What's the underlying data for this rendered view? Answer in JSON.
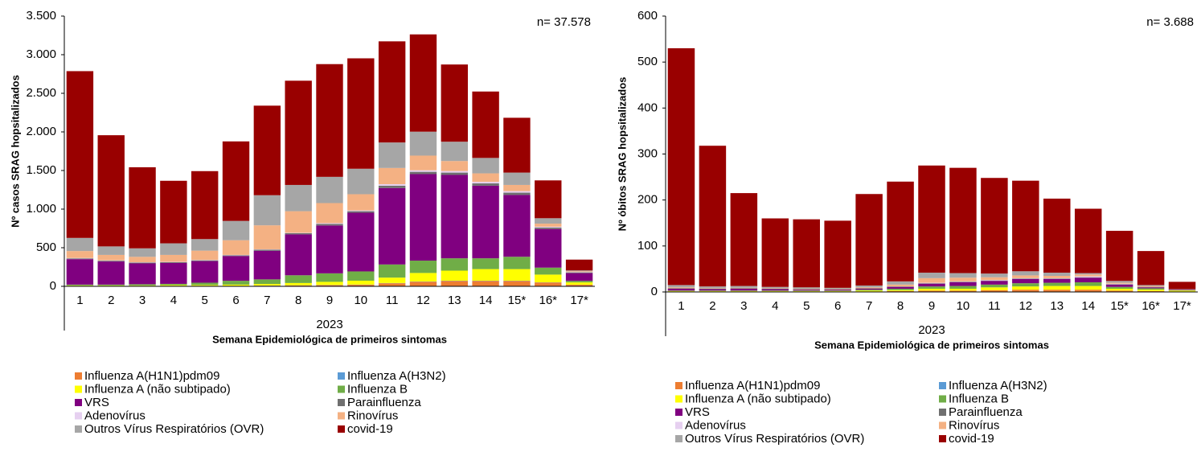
{
  "chart_data": [
    {
      "type": "bar",
      "stacked": true,
      "annotation": "n= 37.578",
      "ylabel": "Nº casos SRAG hopsitalizados",
      "xlabel": "Semana Epidemiológica de primeiros sintomas",
      "x_group": "2023",
      "categories": [
        "1",
        "2",
        "3",
        "4",
        "5",
        "6",
        "7",
        "8",
        "9",
        "10",
        "11",
        "12",
        "13",
        "14",
        "15*",
        "16*",
        "17*"
      ],
      "ylim": [
        0,
        3500
      ],
      "yticks": [
        0,
        500,
        {
          "value": 1000,
          "label": "1.000"
        },
        {
          "value": 1500,
          "label": "1.500"
        },
        {
          "value": 2000,
          "label": "2.000"
        },
        {
          "value": 2500,
          "label": "2.500"
        },
        {
          "value": 3000,
          "label": "3.000"
        },
        {
          "value": 3500,
          "label": "3.500"
        }
      ],
      "series": [
        {
          "name": "Influenza A(H1N1)pdm09",
          "color": "#ed7d31",
          "values": [
            5,
            5,
            5,
            5,
            5,
            5,
            8,
            10,
            15,
            20,
            40,
            60,
            70,
            70,
            70,
            50,
            20
          ]
        },
        {
          "name": "Influenza A(H3N2)",
          "color": "#5b9bd5",
          "values": [
            2,
            2,
            2,
            2,
            2,
            2,
            2,
            3,
            3,
            3,
            3,
            3,
            3,
            3,
            3,
            2,
            1
          ]
        },
        {
          "name": "Influenza A (não subtipado)",
          "color": "#ffff00",
          "values": [
            5,
            5,
            5,
            10,
            10,
            15,
            20,
            30,
            40,
            50,
            70,
            110,
            130,
            150,
            150,
            100,
            30
          ]
        },
        {
          "name": "Influenza B",
          "color": "#70ad47",
          "values": [
            10,
            10,
            15,
            15,
            30,
            50,
            60,
            100,
            110,
            120,
            170,
            160,
            160,
            140,
            160,
            90,
            20
          ]
        },
        {
          "name": "VRS",
          "color": "#800080",
          "values": [
            330,
            300,
            270,
            270,
            280,
            320,
            370,
            530,
            620,
            760,
            990,
            1120,
            1080,
            940,
            800,
            500,
            100
          ]
        },
        {
          "name": "Parainfluenza",
          "color": "#6f6f6f",
          "values": [
            10,
            10,
            10,
            10,
            10,
            10,
            15,
            15,
            20,
            20,
            30,
            30,
            30,
            30,
            30,
            20,
            10
          ]
        },
        {
          "name": "Adenovírus",
          "color": "#e6d0f0",
          "values": [
            5,
            5,
            5,
            5,
            5,
            5,
            5,
            5,
            10,
            10,
            20,
            20,
            20,
            20,
            20,
            10,
            5
          ]
        },
        {
          "name": "Rinovírus",
          "color": "#f4b183",
          "values": [
            90,
            70,
            70,
            90,
            120,
            190,
            310,
            280,
            260,
            210,
            210,
            190,
            130,
            110,
            80,
            40,
            10
          ]
        },
        {
          "name": "Outros Vírus Respiratórios (OVR)",
          "color": "#a6a6a6",
          "values": [
            170,
            110,
            110,
            150,
            150,
            250,
            390,
            340,
            340,
            330,
            330,
            310,
            250,
            200,
            160,
            70,
            10
          ]
        },
        {
          "name": "covid-19",
          "color": "#990000",
          "values": [
            2160,
            1440,
            1050,
            810,
            880,
            1030,
            1160,
            1350,
            1460,
            1430,
            1310,
            1260,
            1000,
            860,
            710,
            490,
            140
          ]
        }
      ]
    },
    {
      "type": "bar",
      "stacked": true,
      "annotation": "n= 3.688",
      "ylabel": "Nº óbitos SRAG hopsitalizados",
      "xlabel": "Semana Epidemiológica de primeiros sintomas",
      "x_group": "2023",
      "categories": [
        "1",
        "2",
        "3",
        "4",
        "5",
        "6",
        "7",
        "8",
        "9",
        "10",
        "11",
        "12",
        "13",
        "14",
        "15*",
        "16*",
        "17*"
      ],
      "ylim": [
        0,
        600
      ],
      "yticks": [
        0,
        100,
        200,
        300,
        400,
        500,
        600
      ],
      "series": [
        {
          "name": "Influenza A(H1N1)pdm09",
          "color": "#ed7d31",
          "values": [
            1,
            1,
            1,
            1,
            1,
            1,
            1,
            2,
            3,
            3,
            4,
            5,
            5,
            5,
            3,
            2,
            1
          ]
        },
        {
          "name": "Influenza A(H3N2)",
          "color": "#5b9bd5",
          "values": [
            0,
            0,
            0,
            0,
            0,
            0,
            0,
            0,
            0,
            0,
            0,
            0,
            0,
            0,
            0,
            0,
            0
          ]
        },
        {
          "name": "Influenza A (não subtipado)",
          "color": "#ffff00",
          "values": [
            1,
            1,
            1,
            1,
            1,
            1,
            2,
            2,
            4,
            4,
            6,
            7,
            8,
            8,
            4,
            3,
            2
          ]
        },
        {
          "name": "Influenza B",
          "color": "#70ad47",
          "values": [
            1,
            1,
            1,
            1,
            1,
            1,
            2,
            3,
            5,
            6,
            6,
            7,
            7,
            8,
            4,
            3,
            1
          ]
        },
        {
          "name": "VRS",
          "color": "#800080",
          "values": [
            4,
            3,
            4,
            3,
            2,
            2,
            2,
            4,
            6,
            8,
            8,
            9,
            8,
            10,
            5,
            2,
            1
          ]
        },
        {
          "name": "Parainfluenza",
          "color": "#6f6f6f",
          "values": [
            1,
            1,
            1,
            1,
            1,
            1,
            1,
            1,
            1,
            1,
            1,
            1,
            1,
            1,
            1,
            1,
            0
          ]
        },
        {
          "name": "Adenovírus",
          "color": "#e6d0f0",
          "values": [
            0,
            0,
            0,
            0,
            0,
            0,
            0,
            0,
            1,
            1,
            1,
            1,
            1,
            2,
            1,
            0,
            0
          ]
        },
        {
          "name": "Rinovírus",
          "color": "#f4b183",
          "values": [
            2,
            1,
            1,
            1,
            1,
            1,
            2,
            4,
            10,
            8,
            6,
            6,
            5,
            4,
            2,
            2,
            0
          ]
        },
        {
          "name": "Outros Vírus Respiratórios (OVR)",
          "color": "#a6a6a6",
          "values": [
            5,
            4,
            4,
            3,
            3,
            2,
            4,
            7,
            12,
            10,
            8,
            9,
            7,
            3,
            4,
            2,
            1
          ]
        },
        {
          "name": "covid-19",
          "color": "#990000",
          "values": [
            515,
            306,
            202,
            149,
            148,
            146,
            199,
            217,
            233,
            229,
            208,
            197,
            161,
            140,
            109,
            74,
            16
          ]
        }
      ]
    }
  ]
}
